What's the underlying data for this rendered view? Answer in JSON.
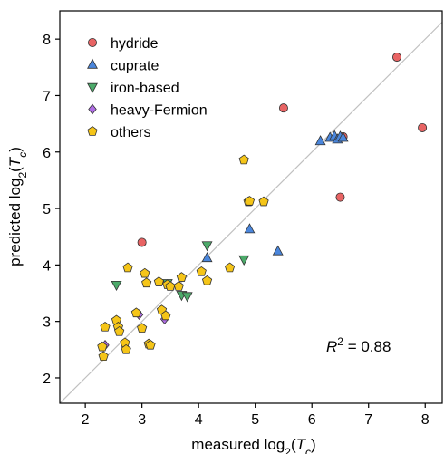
{
  "chart_data": {
    "type": "scatter",
    "title": "",
    "xlabel": {
      "prefix": "measured log",
      "sub": "2",
      "open": "(",
      "var": "T",
      "varsub": "c",
      "close": ")"
    },
    "ylabel": {
      "prefix": "predicted log",
      "sub": "2",
      "open": "(",
      "var": "T",
      "varsub": "c",
      "close": ")"
    },
    "xlim": [
      1.55,
      8.3
    ],
    "ylim": [
      1.55,
      8.5
    ],
    "xticks": [
      "2",
      "3",
      "4",
      "5",
      "6",
      "7",
      "8"
    ],
    "yticks": [
      "2",
      "3",
      "4",
      "5",
      "6",
      "7",
      "8"
    ],
    "grid": false,
    "legend_position": "top-left",
    "diagonal": {
      "color": "#c0c0c0"
    },
    "annotation": {
      "symbol": "R",
      "exponent": "2",
      "text": " = 0.88"
    },
    "series": [
      {
        "name": "hydride",
        "marker": "circle",
        "color": "#e86464",
        "points": [
          [
            3.0,
            4.4
          ],
          [
            5.5,
            6.78
          ],
          [
            6.5,
            5.2
          ],
          [
            6.55,
            6.27
          ],
          [
            7.5,
            7.68
          ],
          [
            7.95,
            6.43
          ]
        ]
      },
      {
        "name": "cuprate",
        "marker": "triangle-up",
        "color": "#4a86dc",
        "points": [
          [
            4.15,
            4.12
          ],
          [
            4.9,
            4.63
          ],
          [
            5.4,
            4.24
          ],
          [
            6.15,
            6.19
          ],
          [
            6.32,
            6.25
          ],
          [
            6.4,
            6.28
          ],
          [
            6.45,
            6.22
          ],
          [
            6.5,
            6.27
          ],
          [
            6.55,
            6.25
          ]
        ]
      },
      {
        "name": "iron-based",
        "marker": "triangle-down",
        "color": "#4caa6a",
        "points": [
          [
            2.55,
            3.65
          ],
          [
            3.45,
            3.68
          ],
          [
            3.7,
            3.47
          ],
          [
            3.8,
            3.45
          ],
          [
            4.15,
            4.35
          ],
          [
            4.8,
            4.1
          ]
        ]
      },
      {
        "name": "heavy-Fermion",
        "marker": "diamond",
        "color": "#b06ee6",
        "points": [
          [
            2.35,
            2.58
          ],
          [
            2.95,
            3.12
          ],
          [
            3.4,
            3.04
          ]
        ]
      },
      {
        "name": "others",
        "marker": "pentagon",
        "color": "#f5c518",
        "points": [
          [
            2.32,
            2.38
          ],
          [
            2.3,
            2.55
          ],
          [
            2.35,
            2.9
          ],
          [
            2.55,
            3.02
          ],
          [
            2.58,
            2.9
          ],
          [
            2.6,
            2.82
          ],
          [
            2.7,
            2.62
          ],
          [
            2.72,
            2.5
          ],
          [
            2.75,
            3.95
          ],
          [
            2.9,
            3.15
          ],
          [
            3.0,
            2.88
          ],
          [
            3.05,
            3.85
          ],
          [
            3.08,
            3.68
          ],
          [
            3.12,
            2.6
          ],
          [
            3.15,
            2.58
          ],
          [
            3.3,
            3.7
          ],
          [
            3.35,
            3.2
          ],
          [
            3.42,
            3.1
          ],
          [
            3.45,
            3.65
          ],
          [
            3.5,
            3.62
          ],
          [
            3.65,
            3.62
          ],
          [
            3.7,
            3.78
          ],
          [
            4.05,
            3.88
          ],
          [
            4.15,
            3.72
          ],
          [
            4.55,
            3.95
          ],
          [
            4.8,
            5.86
          ],
          [
            4.88,
            5.12
          ],
          [
            4.9,
            5.13
          ],
          [
            5.15,
            5.12
          ]
        ]
      }
    ]
  }
}
